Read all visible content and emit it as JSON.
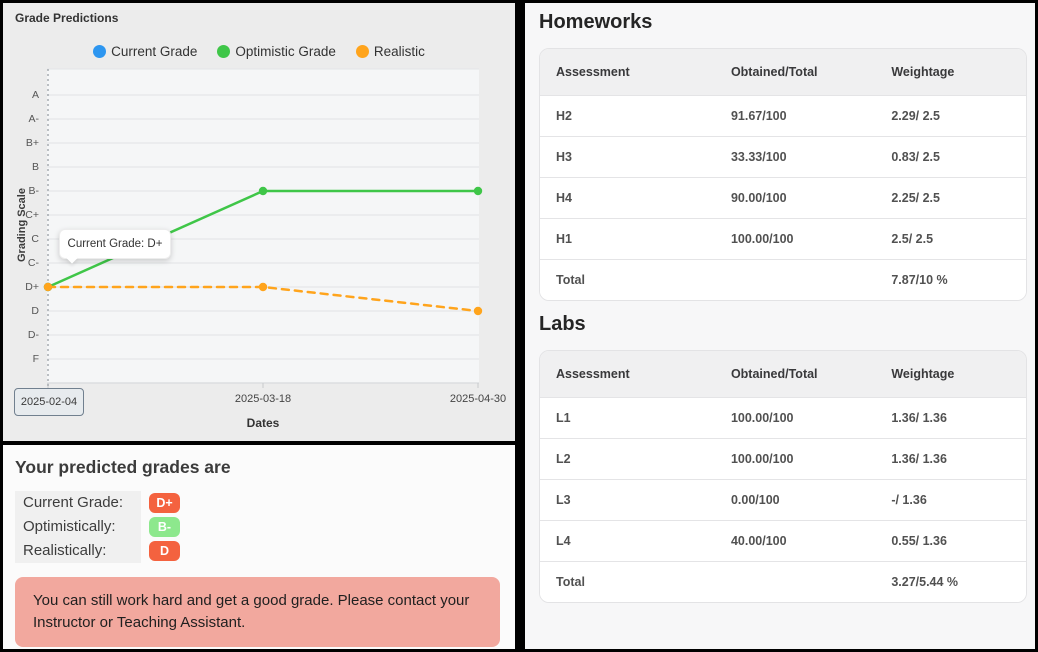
{
  "chart_panel": {
    "title": "Grade Predictions",
    "y_axis_label": "Grading Scale",
    "x_axis_label": "Dates",
    "selected_date": "2025-02-04",
    "tooltip": "Current Grade: D+",
    "legend": [
      {
        "label": "Current Grade",
        "color": "#2d96f0"
      },
      {
        "label": "Optimistic Grade",
        "color": "#3fc648"
      },
      {
        "label": "Realistic",
        "color": "#ffa41c"
      }
    ]
  },
  "chart_data": {
    "type": "line",
    "title": "Grade Predictions",
    "x": [
      "2025-02-04",
      "2025-03-18",
      "2025-04-30"
    ],
    "xlabel": "Dates",
    "ylabel": "Grading Scale",
    "y_categories_top_to_bottom": [
      "A",
      "A-",
      "B+",
      "B",
      "B-",
      "C+",
      "C",
      "C-",
      "D+",
      "D",
      "D-",
      "F"
    ],
    "series": [
      {
        "name": "Current Grade",
        "color": "#2d96f0",
        "style": "point",
        "values": [
          "D+",
          null,
          null
        ]
      },
      {
        "name": "Optimistic Grade",
        "color": "#3fc648",
        "style": "solid",
        "values": [
          "D+",
          "B-",
          "B-"
        ]
      },
      {
        "name": "Realistic",
        "color": "#ffa41c",
        "style": "dashed",
        "values": [
          "D+",
          "D+",
          "D"
        ]
      }
    ],
    "grid": true,
    "legend_position": "top",
    "annotation": "Current Grade: D+"
  },
  "prediction_panel": {
    "heading": "Your predicted grades are",
    "rows": [
      {
        "label": "Current Grade:",
        "grade": "D+",
        "color": "#f4623f"
      },
      {
        "label": "Optimistically:",
        "grade": "B-",
        "color": "#8de88d"
      },
      {
        "label": "Realistically:",
        "grade": "D",
        "color": "#f4623f"
      }
    ],
    "alert_text": "You can still work hard and get a good grade. Please contact your Instructor or Teaching Assistant."
  },
  "homeworks": {
    "heading": "Homeworks",
    "columns": [
      "Assessment",
      "Obtained/Total",
      "Weightage"
    ],
    "rows": [
      [
        "H2",
        "91.67/100",
        "2.29/ 2.5"
      ],
      [
        "H3",
        "33.33/100",
        "0.83/ 2.5"
      ],
      [
        "H4",
        "90.00/100",
        "2.25/ 2.5"
      ],
      [
        "H1",
        "100.00/100",
        "2.5/ 2.5"
      ],
      [
        "Total",
        "",
        "7.87/10 %"
      ]
    ]
  },
  "labs": {
    "heading": "Labs",
    "columns": [
      "Assessment",
      "Obtained/Total",
      "Weightage"
    ],
    "rows": [
      [
        "L1",
        "100.00/100",
        "1.36/ 1.36"
      ],
      [
        "L2",
        "100.00/100",
        "1.36/ 1.36"
      ],
      [
        "L3",
        "0.00/100",
        "-/ 1.36"
      ],
      [
        "L4",
        "40.00/100",
        "0.55/ 1.36"
      ],
      [
        "Total",
        "",
        "3.27/5.44 %"
      ]
    ]
  }
}
